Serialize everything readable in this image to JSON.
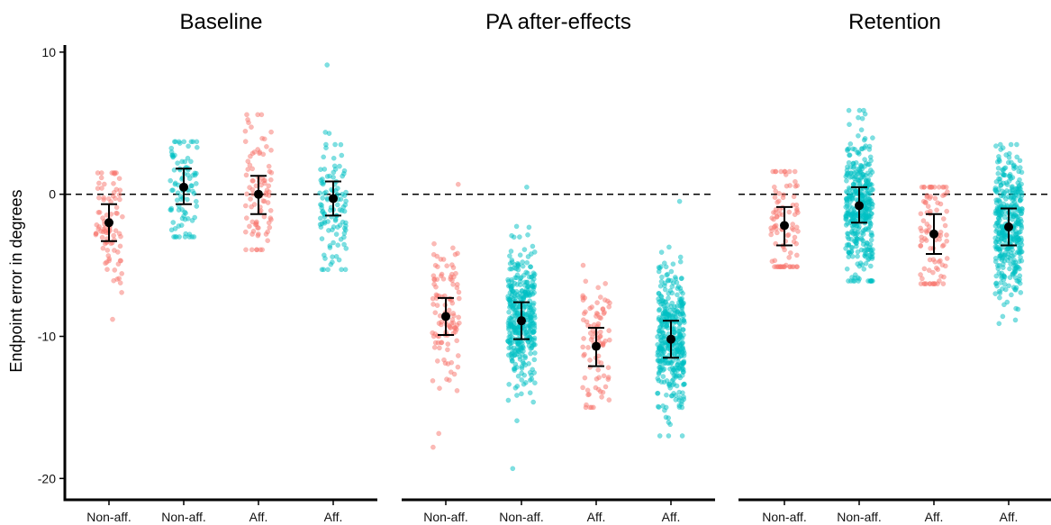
{
  "chart_data": {
    "type": "scatter",
    "subtype": "jittered strip plot with mean and error bars, faceted",
    "ylabel": "Endpoint error in degrees",
    "ylim": [
      -21.5,
      10.5
    ],
    "yticks": [
      10,
      0,
      -10,
      -20
    ],
    "ytick_labels": [
      "10",
      "0",
      "-10",
      "-20"
    ],
    "reference_line": {
      "y": 0,
      "style": "dashed"
    },
    "colors": {
      "red": "#F8766D",
      "teal": "#00BFC4",
      "summary": "#000000"
    },
    "panels": [
      {
        "title": "Baseline",
        "groups": [
          {
            "label": "Non-aff.",
            "color": "red",
            "mean": -2.0,
            "err_low": -3.3,
            "err_high": -0.7,
            "n_points": 90,
            "range": [
              -8.8,
              1.5
            ]
          },
          {
            "label": "Non-aff.",
            "color": "teal",
            "mean": 0.5,
            "err_low": -0.7,
            "err_high": 1.8,
            "n_points": 90,
            "range": [
              -3.0,
              3.7
            ]
          },
          {
            "label": "Aff.",
            "color": "red",
            "mean": 0.0,
            "err_low": -1.4,
            "err_high": 1.3,
            "n_points": 90,
            "range": [
              -3.9,
              5.6
            ]
          },
          {
            "label": "Aff.",
            "color": "teal",
            "mean": -0.3,
            "err_low": -1.5,
            "err_high": 0.9,
            "n_points": 110,
            "range": [
              -5.3,
              9.1
            ]
          }
        ]
      },
      {
        "title": "PA after-effects",
        "groups": [
          {
            "label": "Non-aff.",
            "color": "red",
            "mean": -8.6,
            "err_low": -9.9,
            "err_high": -7.3,
            "n_points": 110,
            "range": [
              -17.8,
              0.7
            ]
          },
          {
            "label": "Non-aff.",
            "color": "teal",
            "mean": -8.9,
            "err_low": -10.2,
            "err_high": -7.6,
            "n_points": 380,
            "range": [
              -19.3,
              0.5
            ]
          },
          {
            "label": "Aff.",
            "color": "red",
            "mean": -10.7,
            "err_low": -12.1,
            "err_high": -9.4,
            "n_points": 90,
            "range": [
              -15.0,
              -5.0
            ]
          },
          {
            "label": "Aff.",
            "color": "teal",
            "mean": -10.2,
            "err_low": -11.5,
            "err_high": -8.9,
            "n_points": 380,
            "range": [
              -17.0,
              -0.5
            ]
          }
        ]
      },
      {
        "title": "Retention",
        "groups": [
          {
            "label": "Non-aff.",
            "color": "red",
            "mean": -2.2,
            "err_low": -3.6,
            "err_high": -0.9,
            "n_points": 90,
            "range": [
              -5.1,
              1.6
            ]
          },
          {
            "label": "Non-aff.",
            "color": "teal",
            "mean": -0.8,
            "err_low": -2.0,
            "err_high": 0.5,
            "n_points": 380,
            "range": [
              -6.1,
              5.9
            ]
          },
          {
            "label": "Aff.",
            "color": "red",
            "mean": -2.8,
            "err_low": -4.2,
            "err_high": -1.4,
            "n_points": 90,
            "range": [
              -6.3,
              0.5
            ]
          },
          {
            "label": "Aff.",
            "color": "teal",
            "mean": -2.3,
            "err_low": -3.6,
            "err_high": -1.0,
            "n_points": 380,
            "range": [
              -9.1,
              3.5
            ]
          }
        ]
      }
    ]
  }
}
